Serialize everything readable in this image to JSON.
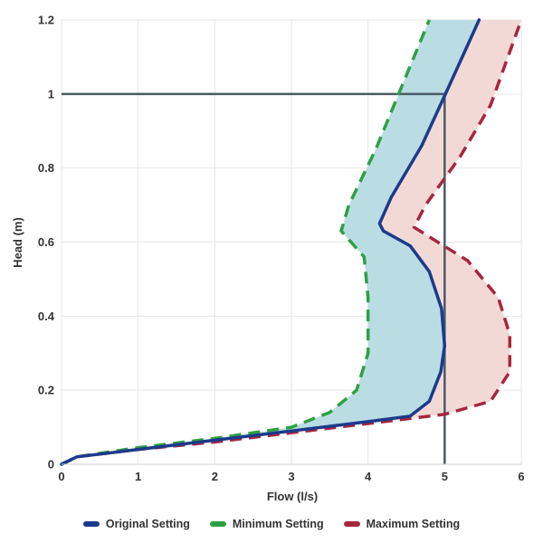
{
  "chart_data": {
    "type": "line",
    "xlabel": "Flow (l/s)",
    "ylabel": "Head (m)",
    "xlim": [
      0,
      6
    ],
    "ylim": [
      0,
      1.2
    ],
    "x_ticks": [
      0,
      1,
      2,
      3,
      4,
      5,
      6
    ],
    "y_ticks": [
      "0",
      "0.2",
      "0.4",
      "0.6",
      "0.8",
      "1",
      "1.2"
    ],
    "grid": true,
    "legend_position": "bottom",
    "reference_lines": {
      "head": 1,
      "flow": 5,
      "color": "#4a5a63"
    },
    "series": [
      {
        "name": "Original Setting",
        "color": "#1c3a8c",
        "style": "solid",
        "points": [
          [
            0,
            0
          ],
          [
            0.2,
            0.02
          ],
          [
            1,
            0.04
          ],
          [
            2,
            0.065
          ],
          [
            3,
            0.09
          ],
          [
            4,
            0.115
          ],
          [
            4.55,
            0.13
          ],
          [
            4.8,
            0.17
          ],
          [
            4.95,
            0.25
          ],
          [
            5,
            0.32
          ],
          [
            4.96,
            0.42
          ],
          [
            4.8,
            0.52
          ],
          [
            4.55,
            0.59
          ],
          [
            4.2,
            0.63
          ],
          [
            4.15,
            0.65
          ],
          [
            4.3,
            0.72
          ],
          [
            4.7,
            0.86
          ],
          [
            5,
            0.995
          ],
          [
            5.45,
            1.2
          ]
        ]
      },
      {
        "name": "Minimum Setting",
        "color": "#2ea043",
        "style": "dashed",
        "points": [
          [
            0,
            0
          ],
          [
            0.2,
            0.02
          ],
          [
            1,
            0.045
          ],
          [
            2,
            0.07
          ],
          [
            3,
            0.1
          ],
          [
            3.5,
            0.14
          ],
          [
            3.85,
            0.2
          ],
          [
            4,
            0.3
          ],
          [
            4,
            0.45
          ],
          [
            3.95,
            0.56
          ],
          [
            3.65,
            0.63
          ],
          [
            3.75,
            0.7
          ],
          [
            4.1,
            0.85
          ],
          [
            4.4,
            1
          ],
          [
            4.8,
            1.2
          ]
        ]
      },
      {
        "name": "Maximum Setting",
        "color": "#a6263e",
        "style": "dashed",
        "points": [
          [
            0,
            0
          ],
          [
            0.2,
            0.02
          ],
          [
            1,
            0.04
          ],
          [
            2,
            0.06
          ],
          [
            3,
            0.085
          ],
          [
            4,
            0.11
          ],
          [
            5,
            0.135
          ],
          [
            5.6,
            0.17
          ],
          [
            5.85,
            0.25
          ],
          [
            5.85,
            0.35
          ],
          [
            5.7,
            0.45
          ],
          [
            5.3,
            0.55
          ],
          [
            4.6,
            0.64
          ],
          [
            4.75,
            0.7
          ],
          [
            5.2,
            0.83
          ],
          [
            5.6,
            0.97
          ],
          [
            6,
            1.2
          ]
        ]
      }
    ],
    "bands": [
      {
        "between": [
          "Minimum Setting",
          "Original Setting"
        ],
        "color": "#b9dde3"
      },
      {
        "between": [
          "Original Setting",
          "Maximum Setting"
        ],
        "color": "#f3d9d6"
      }
    ]
  }
}
